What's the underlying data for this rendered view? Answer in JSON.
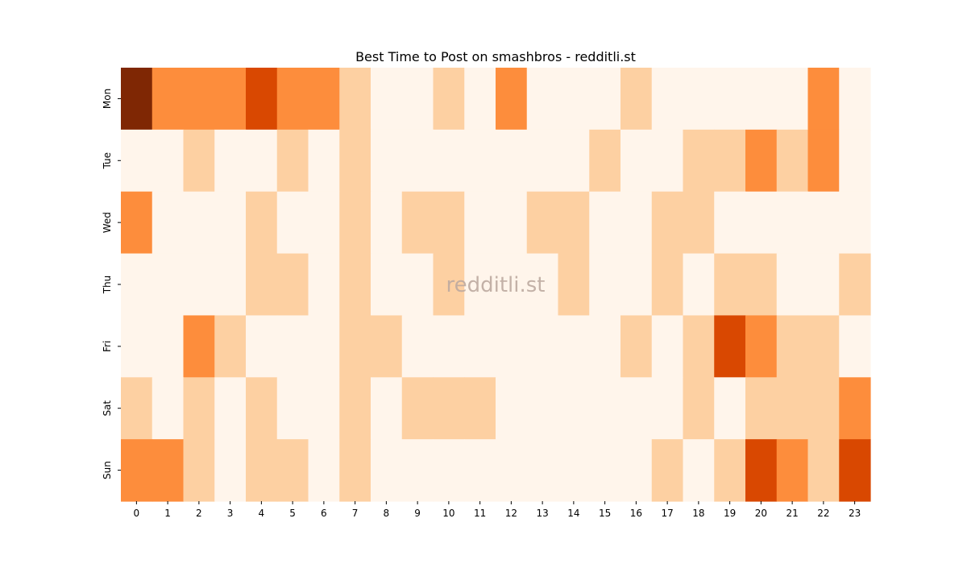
{
  "chart_data": {
    "type": "heatmap",
    "title": "Best Time to Post on smashbros - redditli.st",
    "watermark": "redditli.st",
    "x_labels": [
      "0",
      "1",
      "2",
      "3",
      "4",
      "5",
      "6",
      "7",
      "8",
      "9",
      "10",
      "11",
      "12",
      "13",
      "14",
      "15",
      "16",
      "17",
      "18",
      "19",
      "20",
      "21",
      "22",
      "23"
    ],
    "y_labels": [
      "Mon",
      "Tue",
      "Wed",
      "Thu",
      "Fri",
      "Sat",
      "Sun"
    ],
    "colors": [
      "#fff5eb",
      "#fdd0a2",
      "#fd8d3c",
      "#d94801",
      "#7f2704"
    ],
    "values": [
      [
        4,
        2,
        2,
        2,
        3,
        2,
        2,
        1,
        0,
        0,
        1,
        0,
        2,
        0,
        0,
        0,
        1,
        0,
        0,
        0,
        0,
        0,
        2,
        0
      ],
      [
        0,
        0,
        1,
        0,
        0,
        1,
        0,
        1,
        0,
        0,
        0,
        0,
        0,
        0,
        0,
        1,
        0,
        0,
        1,
        1,
        2,
        1,
        2,
        0
      ],
      [
        2,
        0,
        0,
        0,
        1,
        0,
        0,
        1,
        0,
        1,
        1,
        0,
        0,
        1,
        1,
        0,
        0,
        1,
        1,
        0,
        0,
        0,
        0,
        0
      ],
      [
        0,
        0,
        0,
        0,
        1,
        1,
        0,
        1,
        0,
        0,
        1,
        0,
        0,
        0,
        1,
        0,
        0,
        1,
        0,
        1,
        1,
        0,
        0,
        1
      ],
      [
        0,
        0,
        2,
        1,
        0,
        0,
        0,
        1,
        1,
        0,
        0,
        0,
        0,
        0,
        0,
        0,
        1,
        0,
        1,
        3,
        2,
        1,
        1,
        0
      ],
      [
        1,
        0,
        1,
        0,
        1,
        0,
        0,
        1,
        0,
        1,
        1,
        1,
        0,
        0,
        0,
        0,
        0,
        0,
        1,
        0,
        1,
        1,
        1,
        2
      ],
      [
        2,
        2,
        1,
        0,
        1,
        1,
        0,
        1,
        0,
        0,
        0,
        0,
        0,
        0,
        0,
        0,
        0,
        1,
        0,
        1,
        3,
        2,
        1,
        3
      ]
    ]
  }
}
